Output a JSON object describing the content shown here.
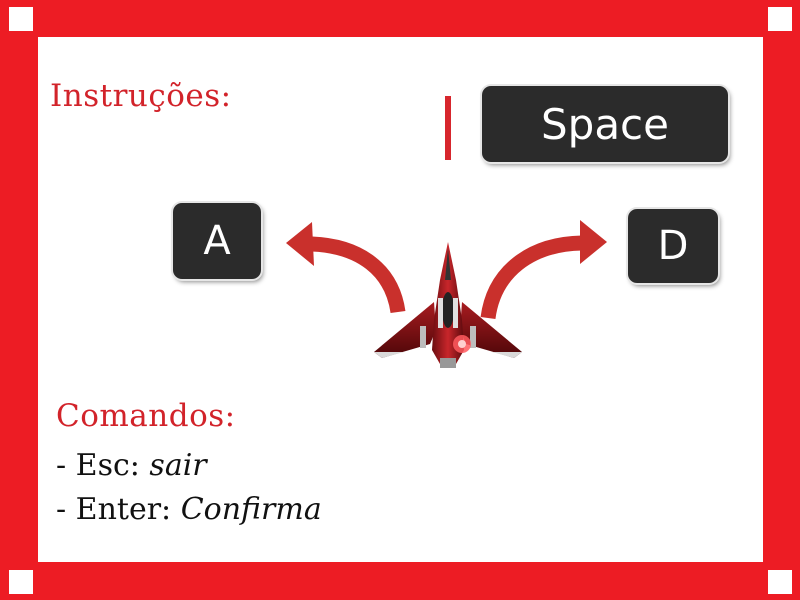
{
  "instructions": {
    "title": "Instruções:"
  },
  "keys": {
    "fire": "Space",
    "left": "A",
    "right": "D"
  },
  "commands": {
    "title": "Comandos:",
    "esc_key": "- Esc: ",
    "esc_action": "sair",
    "enter_key": "- Enter: ",
    "enter_action": "Confirma"
  },
  "colors": {
    "frame": "#ed1c24",
    "accent": "#d2232a",
    "key_bg": "#2b2b2b"
  },
  "icons": {
    "ship": "spaceship-icon",
    "left_arrow": "curved-arrow-left-icon",
    "right_arrow": "curved-arrow-right-icon"
  }
}
